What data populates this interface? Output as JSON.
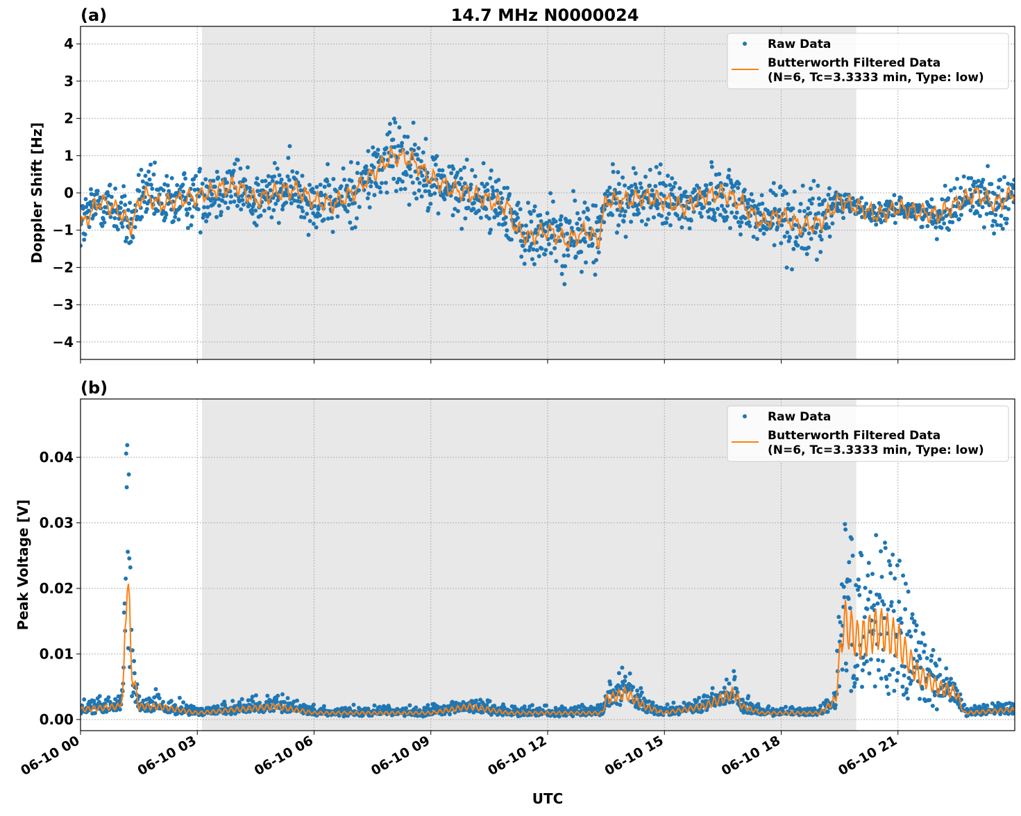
{
  "title": "14.7 MHz N0000024",
  "colors": {
    "raw": "#1f77b4",
    "filtered": "#ff7f0e",
    "shade": "#e8e8e8",
    "grid": "#b0b0b0"
  },
  "chart_data": [
    {
      "type": "scatter",
      "panel_label": "(a)",
      "ylabel": "Doppler Shift [Hz]",
      "xlim_hours": [
        0,
        24
      ],
      "ylim": [
        -4.47,
        4.47
      ],
      "yticks": [
        -4,
        -3,
        -2,
        -1,
        0,
        1,
        2,
        3,
        4
      ],
      "ytick_labels": [
        "−4",
        "−3",
        "−2",
        "−1",
        "0",
        "1",
        "2",
        "3",
        "4"
      ],
      "grid": true,
      "shaded_hours": [
        3.12,
        19.93
      ],
      "legend": {
        "placement": "top-right",
        "entries": [
          "Raw Data",
          "Butterworth Filtered Data",
          "(N=6, Tc=3.3333 min, Type: low)"
        ]
      },
      "filtered": {
        "x_hours": [
          0,
          0.5,
          1,
          1.3,
          1.6,
          2,
          2.5,
          3,
          3.5,
          4,
          4.5,
          5,
          5.5,
          6,
          6.5,
          7,
          7.5,
          8,
          8.5,
          9,
          9.5,
          10,
          10.5,
          11,
          11.2,
          11.5,
          12,
          12.5,
          13,
          13.3,
          13.5,
          14,
          14.5,
          15,
          15.5,
          16,
          16.5,
          17,
          17.5,
          18,
          18.5,
          19,
          19.5,
          20,
          20.5,
          21,
          21.5,
          22,
          22.5,
          23,
          23.5,
          24
        ],
        "y": [
          -0.9,
          -0.2,
          -0.5,
          -0.9,
          0,
          -0.3,
          -0.2,
          -0.1,
          0.1,
          0.2,
          -0.2,
          0,
          0.1,
          -0.2,
          -0.3,
          0,
          0.5,
          1.0,
          0.9,
          0.4,
          0.1,
          0,
          -0.2,
          -0.4,
          -1.0,
          -1.2,
          -1.0,
          -1.3,
          -1.0,
          -1.3,
          -0.2,
          -0.2,
          -0.1,
          -0.2,
          -0.4,
          -0.1,
          0,
          -0.3,
          -0.8,
          -0.6,
          -0.9,
          -0.8,
          -0.2,
          -0.4,
          -0.6,
          -0.4,
          -0.5,
          -0.6,
          -0.3,
          0,
          -0.3,
          0
        ]
      },
      "raw_spread": [
        1.0,
        1.0,
        1.0,
        1.0,
        1.0,
        1.0,
        1.0,
        1.0,
        1.0,
        1.0,
        1.0,
        1.0,
        1.0,
        1.0,
        1.0,
        1.1,
        1.2,
        1.4,
        1.3,
        1.1,
        1.0,
        1.0,
        1.0,
        1.1,
        1.2,
        1.2,
        1.2,
        1.2,
        1.2,
        1.2,
        1.0,
        1.0,
        1.0,
        1.0,
        1.0,
        1.0,
        1.0,
        1.0,
        1.3,
        1.3,
        1.3,
        1.2,
        0.5,
        0.35,
        0.35,
        0.35,
        0.35,
        0.6,
        0.8,
        0.9,
        0.9,
        0.9
      ]
    },
    {
      "type": "scatter",
      "panel_label": "(b)",
      "ylabel": "Peak Voltage [V]",
      "xlabel": "UTC",
      "xlim_hours": [
        0,
        24
      ],
      "ylim": [
        -0.0017,
        0.0489
      ],
      "yticks": [
        0,
        0.01,
        0.02,
        0.03,
        0.04
      ],
      "ytick_labels": [
        "0.00",
        "0.01",
        "0.02",
        "0.03",
        "0.04"
      ],
      "xticks_hours": [
        0,
        3,
        6,
        9,
        12,
        15,
        18,
        21
      ],
      "xtick_labels": [
        "06-10 00",
        "06-10 03",
        "06-10 06",
        "06-10 09",
        "06-10 12",
        "06-10 15",
        "06-10 18",
        "06-10 21"
      ],
      "grid": true,
      "shaded_hours": [
        3.12,
        19.93
      ],
      "legend": {
        "placement": "top-right",
        "entries": [
          "Raw Data",
          "Butterworth Filtered Data",
          "(N=6, Tc=3.3333 min, Type: low)"
        ]
      },
      "filtered": {
        "x_hours": [
          0,
          1,
          1.1,
          1.2,
          1.3,
          1.5,
          2,
          3,
          4,
          5,
          5.5,
          6,
          9,
          10,
          11,
          13.4,
          13.5,
          14,
          14.5,
          15,
          16,
          16.8,
          17,
          17.5,
          19,
          19.4,
          19.6,
          20,
          20.5,
          21,
          21.5,
          22,
          22.5,
          22.7,
          24
        ],
        "y": [
          0.0015,
          0.002,
          0.004,
          0.025,
          0.008,
          0.002,
          0.002,
          0.001,
          0.0015,
          0.002,
          0.0015,
          0.001,
          0.001,
          0.002,
          0.001,
          0.001,
          0.003,
          0.004,
          0.002,
          0.001,
          0.002,
          0.004,
          0.002,
          0.001,
          0.001,
          0.003,
          0.015,
          0.012,
          0.014,
          0.012,
          0.007,
          0.005,
          0.004,
          0.001,
          0.0015
        ]
      }
    }
  ]
}
